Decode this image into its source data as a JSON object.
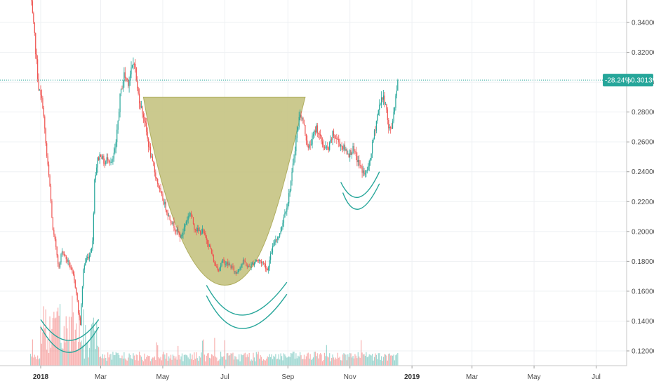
{
  "chart_data": {
    "type": "candlestick",
    "title": "",
    "xlabel": "",
    "ylabel": "",
    "ylim": [
      0.11,
      0.358
    ],
    "grid": true,
    "y_ticks": [
      "0.12000",
      "0.14000",
      "0.16000",
      "0.18000",
      "0.20000",
      "0.22000",
      "0.24000",
      "0.26000",
      "0.28000",
      "0.30000",
      "0.32000",
      "0.34000"
    ],
    "y_tick_values": [
      0.12,
      0.14,
      0.16,
      0.18,
      0.2,
      0.22,
      0.24,
      0.26,
      0.28,
      0.3,
      0.32,
      0.34
    ],
    "x_ticks": [
      {
        "label": "2018",
        "date": "2018-01-01",
        "bold": true
      },
      {
        "label": "Mar",
        "date": "2018-03-01",
        "bold": false
      },
      {
        "label": "May",
        "date": "2018-05-01",
        "bold": false
      },
      {
        "label": "Jul",
        "date": "2018-07-01",
        "bold": false
      },
      {
        "label": "Sep",
        "date": "2018-09-01",
        "bold": false
      },
      {
        "label": "Nov",
        "date": "2018-11-01",
        "bold": false
      },
      {
        "label": "2019",
        "date": "2019-01-01",
        "bold": true
      },
      {
        "label": "Mar",
        "date": "2019-03-01",
        "bold": false
      },
      {
        "label": "May",
        "date": "2019-05-01",
        "bold": false
      },
      {
        "label": "Jul",
        "date": "2019-07-01",
        "bold": false
      }
    ],
    "x_range": [
      "2017-11-22",
      "2019-07-31"
    ],
    "last_price": 0.30139,
    "last_change": "-28.24%",
    "last_price_label": "0.30139",
    "up_color": "#26a69a",
    "down_color": "#ef5350",
    "pattern_fill": "#c2c07a",
    "arc_color": "#26a69a",
    "close_path": [
      [
        "2017-12-22",
        0.358
      ],
      [
        "2017-12-26",
        0.33
      ],
      [
        "2017-12-30",
        0.296
      ],
      [
        "2018-01-03",
        0.285
      ],
      [
        "2018-01-07",
        0.25
      ],
      [
        "2018-01-10",
        0.23
      ],
      [
        "2018-01-13",
        0.2
      ],
      [
        "2018-01-16",
        0.19
      ],
      [
        "2018-01-19",
        0.175
      ],
      [
        "2018-01-22",
        0.188
      ],
      [
        "2018-01-25",
        0.183
      ],
      [
        "2018-01-29",
        0.178
      ],
      [
        "2018-02-02",
        0.17
      ],
      [
        "2018-02-05",
        0.16
      ],
      [
        "2018-02-07",
        0.146
      ],
      [
        "2018-02-09",
        0.138
      ],
      [
        "2018-02-12",
        0.175
      ],
      [
        "2018-02-15",
        0.182
      ],
      [
        "2018-02-18",
        0.184
      ],
      [
        "2018-02-21",
        0.193
      ],
      [
        "2018-02-23",
        0.235
      ],
      [
        "2018-02-26",
        0.248
      ],
      [
        "2018-03-01",
        0.252
      ],
      [
        "2018-03-05",
        0.245
      ],
      [
        "2018-03-08",
        0.25
      ],
      [
        "2018-03-12",
        0.245
      ],
      [
        "2018-03-16",
        0.258
      ],
      [
        "2018-03-20",
        0.29
      ],
      [
        "2018-03-24",
        0.305
      ],
      [
        "2018-03-28",
        0.3
      ],
      [
        "2018-04-01",
        0.31
      ],
      [
        "2018-04-03",
        0.315
      ],
      [
        "2018-04-06",
        0.295
      ],
      [
        "2018-04-09",
        0.285
      ],
      [
        "2018-04-13",
        0.275
      ],
      [
        "2018-04-16",
        0.262
      ],
      [
        "2018-04-20",
        0.248
      ],
      [
        "2018-04-25",
        0.235
      ],
      [
        "2018-04-29",
        0.225
      ],
      [
        "2018-05-03",
        0.218
      ],
      [
        "2018-05-07",
        0.21
      ],
      [
        "2018-05-11",
        0.205
      ],
      [
        "2018-05-15",
        0.2
      ],
      [
        "2018-05-19",
        0.196
      ],
      [
        "2018-05-24",
        0.207
      ],
      [
        "2018-05-28",
        0.213
      ],
      [
        "2018-06-01",
        0.203
      ],
      [
        "2018-06-05",
        0.2
      ],
      [
        "2018-06-09",
        0.2
      ],
      [
        "2018-06-13",
        0.195
      ],
      [
        "2018-06-17",
        0.188
      ],
      [
        "2018-06-21",
        0.178
      ],
      [
        "2018-06-25",
        0.175
      ],
      [
        "2018-06-29",
        0.18
      ],
      [
        "2018-07-04",
        0.178
      ],
      [
        "2018-07-08",
        0.176
      ],
      [
        "2018-07-12",
        0.172
      ],
      [
        "2018-07-16",
        0.177
      ],
      [
        "2018-07-20",
        0.18
      ],
      [
        "2018-07-24",
        0.176
      ],
      [
        "2018-07-28",
        0.178
      ],
      [
        "2018-08-01",
        0.181
      ],
      [
        "2018-08-05",
        0.18
      ],
      [
        "2018-08-09",
        0.178
      ],
      [
        "2018-08-12",
        0.174
      ],
      [
        "2018-08-16",
        0.187
      ],
      [
        "2018-08-20",
        0.195
      ],
      [
        "2018-08-24",
        0.198
      ],
      [
        "2018-08-28",
        0.21
      ],
      [
        "2018-09-01",
        0.22
      ],
      [
        "2018-09-05",
        0.238
      ],
      [
        "2018-09-09",
        0.262
      ],
      [
        "2018-09-13",
        0.28
      ],
      [
        "2018-09-17",
        0.27
      ],
      [
        "2018-09-21",
        0.255
      ],
      [
        "2018-09-25",
        0.262
      ],
      [
        "2018-09-29",
        0.27
      ],
      [
        "2018-10-03",
        0.262
      ],
      [
        "2018-10-07",
        0.256
      ],
      [
        "2018-10-11",
        0.255
      ],
      [
        "2018-10-15",
        0.265
      ],
      [
        "2018-10-19",
        0.262
      ],
      [
        "2018-10-23",
        0.258
      ],
      [
        "2018-10-27",
        0.255
      ],
      [
        "2018-10-31",
        0.252
      ],
      [
        "2018-11-04",
        0.255
      ],
      [
        "2018-11-08",
        0.248
      ],
      [
        "2018-11-12",
        0.242
      ],
      [
        "2018-11-16",
        0.238
      ],
      [
        "2018-11-20",
        0.245
      ],
      [
        "2018-11-24",
        0.262
      ],
      [
        "2018-11-28",
        0.278
      ],
      [
        "2018-12-02",
        0.29
      ],
      [
        "2018-12-06",
        0.287
      ],
      [
        "2018-12-09",
        0.268
      ],
      [
        "2018-12-12",
        0.27
      ],
      [
        "2018-12-15",
        0.285
      ],
      [
        "2018-12-18",
        0.301
      ]
    ],
    "bowl_pattern": {
      "left": [
        "2018-04-12",
        0.29
      ],
      "bottom": [
        "2018-07-01",
        0.164
      ],
      "right": [
        "2018-09-18",
        0.29
      ]
    },
    "arcs": [
      {
        "start": [
          "2018-01-01",
          0.141
        ],
        "mid": [
          "2018-01-29",
          0.127
        ],
        "end": [
          "2018-02-27",
          0.141
        ]
      },
      {
        "start": [
          "2018-01-01",
          0.136
        ],
        "mid": [
          "2018-01-29",
          0.119
        ],
        "end": [
          "2018-02-27",
          0.136
        ]
      },
      {
        "start": [
          "2018-06-13",
          0.164
        ],
        "mid": [
          "2018-07-19",
          0.144
        ],
        "end": [
          "2018-08-31",
          0.166
        ]
      },
      {
        "start": [
          "2018-06-13",
          0.157
        ],
        "mid": [
          "2018-07-19",
          0.135
        ],
        "end": [
          "2018-08-31",
          0.158
        ]
      },
      {
        "start": [
          "2018-10-23",
          0.233
        ],
        "mid": [
          "2018-11-10",
          0.223
        ],
        "end": [
          "2018-11-30",
          0.24
        ]
      },
      {
        "start": [
          "2018-10-25",
          0.226
        ],
        "mid": [
          "2018-11-10",
          0.215
        ],
        "end": [
          "2018-11-30",
          0.232
        ]
      }
    ]
  }
}
